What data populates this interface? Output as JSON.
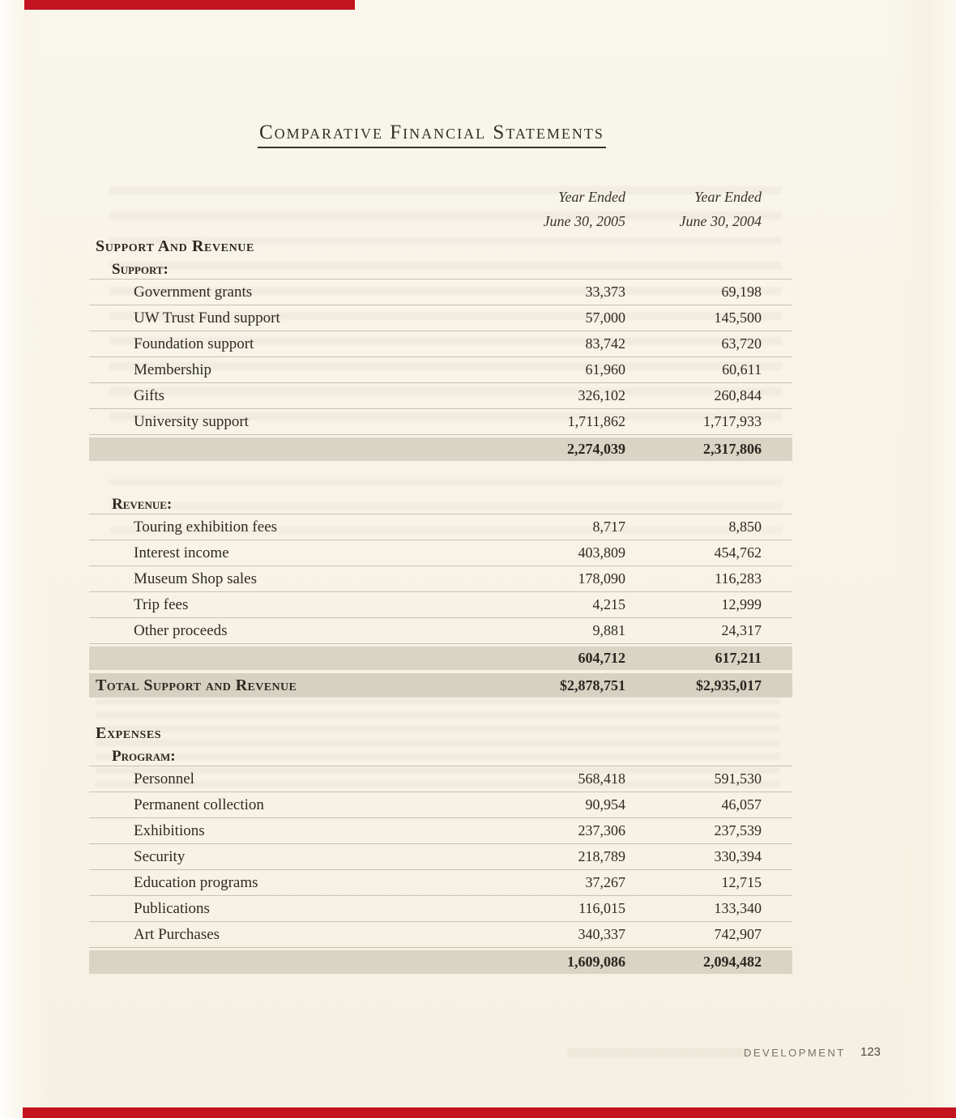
{
  "title": "Comparative Financial Statements",
  "table": {
    "columns": [
      {
        "year_ended": "Year Ended",
        "date": "June 30, 2005"
      },
      {
        "year_ended": "Year Ended",
        "date": "June 30, 2004"
      }
    ],
    "blocks": [
      {
        "type": "section",
        "heading": "Support And Revenue",
        "subheading": "Support:",
        "rows": [
          {
            "label": "Government grants",
            "y2005": "33,373",
            "y2004": "69,198"
          },
          {
            "label": "UW Trust Fund support",
            "y2005": "57,000",
            "y2004": "145,500"
          },
          {
            "label": "Foundation support",
            "y2005": "83,742",
            "y2004": "63,720"
          },
          {
            "label": "Membership",
            "y2005": "61,960",
            "y2004": "60,611"
          },
          {
            "label": "Gifts",
            "y2005": "326,102",
            "y2004": "260,844"
          },
          {
            "label": "University support",
            "y2005": "1,711,862",
            "y2004": "1,717,933"
          }
        ],
        "subtotal": {
          "y2005": "2,274,039",
          "y2004": "2,317,806"
        }
      },
      {
        "type": "section",
        "heading": "",
        "subheading": "Revenue:",
        "rows": [
          {
            "label": "Touring exhibition fees",
            "y2005": "8,717",
            "y2004": "8,850"
          },
          {
            "label": "Interest income",
            "y2005": "403,809",
            "y2004": "454,762"
          },
          {
            "label": "Museum Shop sales",
            "y2005": "178,090",
            "y2004": "116,283"
          },
          {
            "label": "Trip fees",
            "y2005": "4,215",
            "y2004": "12,999"
          },
          {
            "label": "Other proceeds",
            "y2005": "9,881",
            "y2004": "24,317"
          }
        ],
        "subtotal": {
          "y2005": "604,712",
          "y2004": "617,211"
        }
      },
      {
        "type": "total",
        "label": "Total Support and Revenue",
        "y2005": "$2,878,751",
        "y2004": "$2,935,017"
      },
      {
        "type": "section",
        "heading": "Expenses",
        "subheading": "Program:",
        "rows": [
          {
            "label": "Personnel",
            "y2005": "568,418",
            "y2004": "591,530"
          },
          {
            "label": "Permanent collection",
            "y2005": "90,954",
            "y2004": "46,057"
          },
          {
            "label": "Exhibitions",
            "y2005": "237,306",
            "y2004": "237,539"
          },
          {
            "label": "Security",
            "y2005": "218,789",
            "y2004": "330,394"
          },
          {
            "label": "Education programs",
            "y2005": "37,267",
            "y2004": "12,715"
          },
          {
            "label": "Publications",
            "y2005": "116,015",
            "y2004": "133,340"
          },
          {
            "label": "Art Purchases",
            "y2005": "340,337",
            "y2004": "742,907"
          }
        ],
        "subtotal": {
          "y2005": "1,609,086",
          "y2004": "2,094,482"
        }
      }
    ]
  },
  "footer": {
    "section": "DEVELOPMENT",
    "page_number": "123"
  },
  "colors": {
    "accent_red": "#c2131f",
    "paper": "#f7f3e6",
    "shaded_row": "#d9d4c3"
  }
}
